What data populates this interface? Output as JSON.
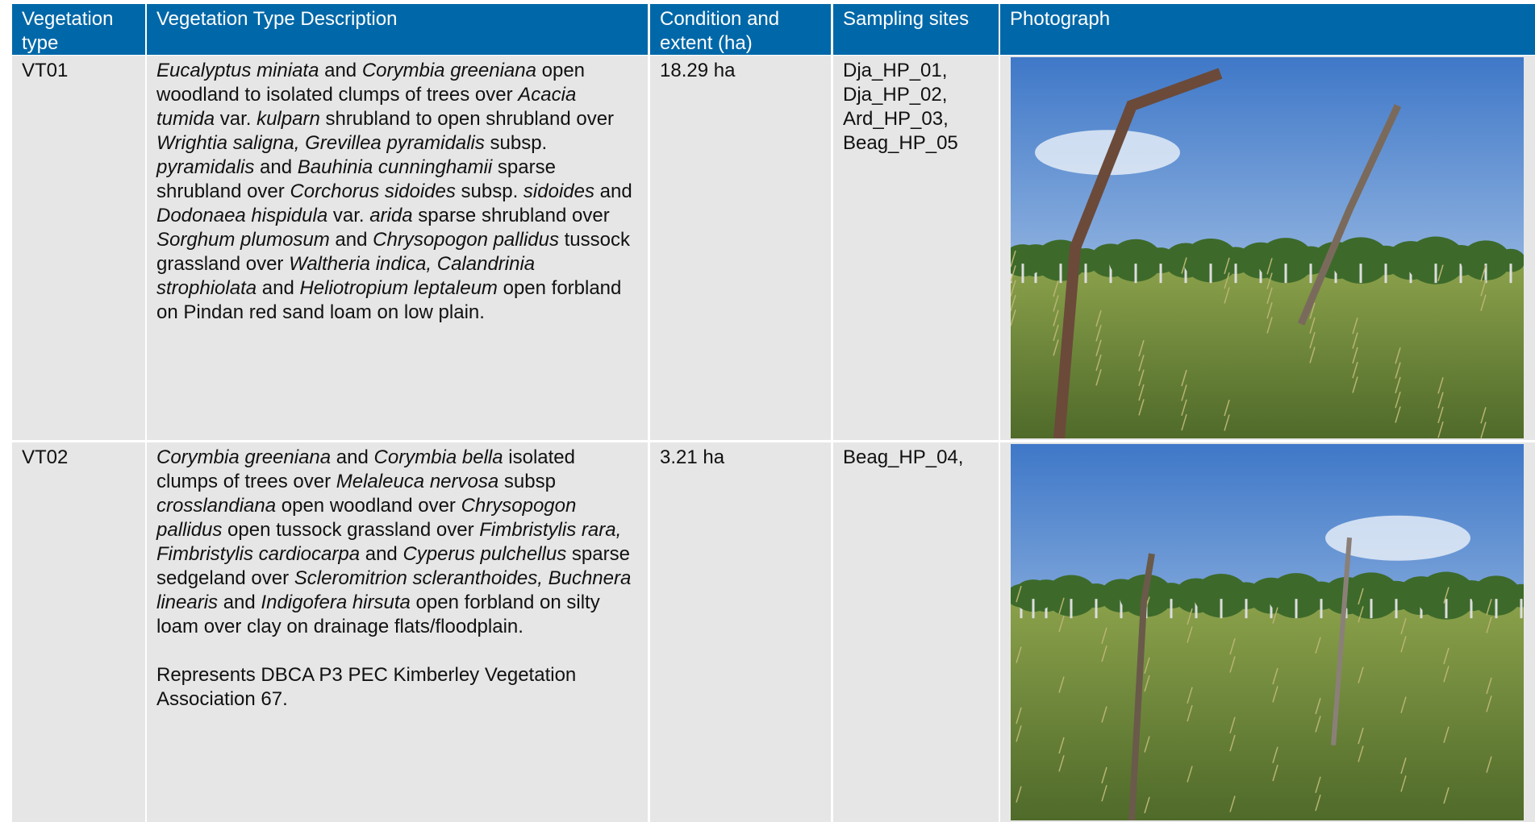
{
  "table": {
    "headers": [
      "Vegetation type",
      "Vegetation Type Description",
      "Condition and extent (ha)",
      "Sampling sites",
      "Photograph"
    ],
    "rows": [
      {
        "vegetation_type": "VT01",
        "description": [
          {
            "italic": "Eucalyptus miniata"
          },
          " and ",
          {
            "italic": "Corymbia greeniana"
          },
          " open woodland to isolated clumps of trees over ",
          {
            "italic": "Acacia tumida"
          },
          " var. ",
          {
            "italic": "kulparn"
          },
          "  shrubland to open shrubland over ",
          {
            "italic": "Wrightia saligna, Grevillea pyramidalis"
          },
          " subsp. ",
          {
            "italic": "pyramidalis"
          },
          " and ",
          {
            "italic": "Bauhinia cunninghamii"
          },
          " sparse shrubland over ",
          {
            "italic": "Corchorus sidoides"
          },
          " subsp. ",
          {
            "italic": "sidoides"
          },
          " and ",
          {
            "italic": "Dodonaea hispidula"
          },
          " var. ",
          {
            "italic": "arida"
          },
          " sparse shrubland over ",
          {
            "italic": "Sorghum plumosum"
          },
          " and ",
          {
            "italic": "Chrysopogon pallidus"
          },
          " tussock grassland over ",
          {
            "italic": "Waltheria indica, Calandrinia strophiolata"
          },
          " and ",
          {
            "italic": "Heliotropium leptaleum"
          },
          " open forbland on Pindan red sand loam on low plain."
        ],
        "condition": "18.29 ha",
        "sampling_sites": [
          "Dja_HP_01,",
          "Dja_HP_02,",
          "Ard_HP_03,",
          "Beag_HP_05"
        ]
      },
      {
        "vegetation_type": "VT02",
        "description": [
          {
            "italic": "Corymbia greeniana"
          },
          " and ",
          {
            "italic": "Corymbia bella"
          },
          " isolated clumps of trees over ",
          {
            "italic": "Melaleuca nervosa"
          },
          " subsp ",
          {
            "italic": "crosslandiana"
          },
          " open woodland over ",
          {
            "italic": "Chrysopogon pallidus"
          },
          " open tussock grassland over ",
          {
            "italic": "Fimbristylis rara, Fimbristylis cardiocarpa"
          },
          " and ",
          {
            "italic": "Cyperus pulchellus"
          },
          " sparse sedgeland over ",
          {
            "italic": "Scleromitrion scleranthoides, Buchnera linearis"
          },
          " and ",
          {
            "italic": "Indigofera hirsuta"
          },
          " open forbland on silty loam over clay on drainage flats/floodplain."
        ],
        "note": "Represents DBCA P3 PEC Kimberley Vegetation Association 67.",
        "condition": "3.21 ha",
        "sampling_sites": [
          "Beag_HP_04,"
        ]
      }
    ]
  }
}
